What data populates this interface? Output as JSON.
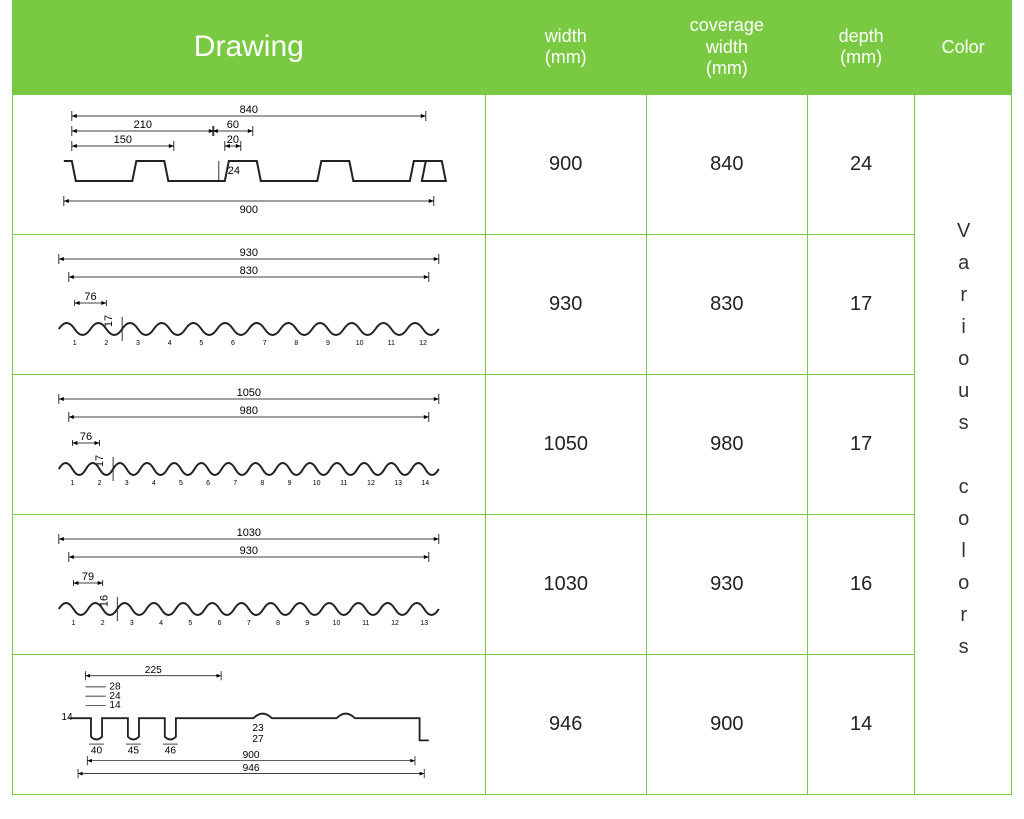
{
  "header": {
    "drawing": "Drawing",
    "width": "width\n(mm)",
    "coverage": "coverage\nwidth\n(mm)",
    "depth": "depth\n(mm)",
    "color": "Color"
  },
  "color_cell": "Various colors",
  "rows": [
    {
      "width": "900",
      "coverage": "840",
      "depth": "24",
      "drawing": {
        "type": "trapezoid",
        "top_dim": "840",
        "bottom_dim": "900",
        "left_dims": [
          "210",
          "150"
        ],
        "mid_dims": [
          "60",
          "20"
        ],
        "depth_label": "24"
      }
    },
    {
      "width": "930",
      "coverage": "830",
      "depth": "17",
      "drawing": {
        "type": "corrugated",
        "top_dim": "930",
        "mid_dim": "830",
        "pitch": "76",
        "depth_label": "17",
        "waves": 12
      }
    },
    {
      "width": "1050",
      "coverage": "980",
      "depth": "17",
      "drawing": {
        "type": "corrugated",
        "top_dim": "1050",
        "mid_dim": "980",
        "pitch": "76",
        "depth_label": "17",
        "waves": 14
      }
    },
    {
      "width": "1030",
      "coverage": "930",
      "depth": "16",
      "drawing": {
        "type": "corrugated",
        "top_dim": "1030",
        "mid_dim": "930",
        "pitch": "79",
        "depth_label": "16",
        "waves": 13
      }
    },
    {
      "width": "946",
      "coverage": "900",
      "depth": "14",
      "drawing": {
        "type": "channel",
        "top_label": "225",
        "small_labels": [
          "28",
          "24",
          "14"
        ],
        "bottom_dims": [
          "40",
          "45",
          "46"
        ],
        "under_dims": [
          "23",
          "27"
        ],
        "lower1": "900",
        "lower2": "946",
        "left_label": "14"
      }
    }
  ],
  "colors": {
    "header_bg": "#7ac943",
    "header_fg": "#ffffff",
    "border": "#7ac943",
    "text": "#222222",
    "bg": "#ffffff"
  }
}
